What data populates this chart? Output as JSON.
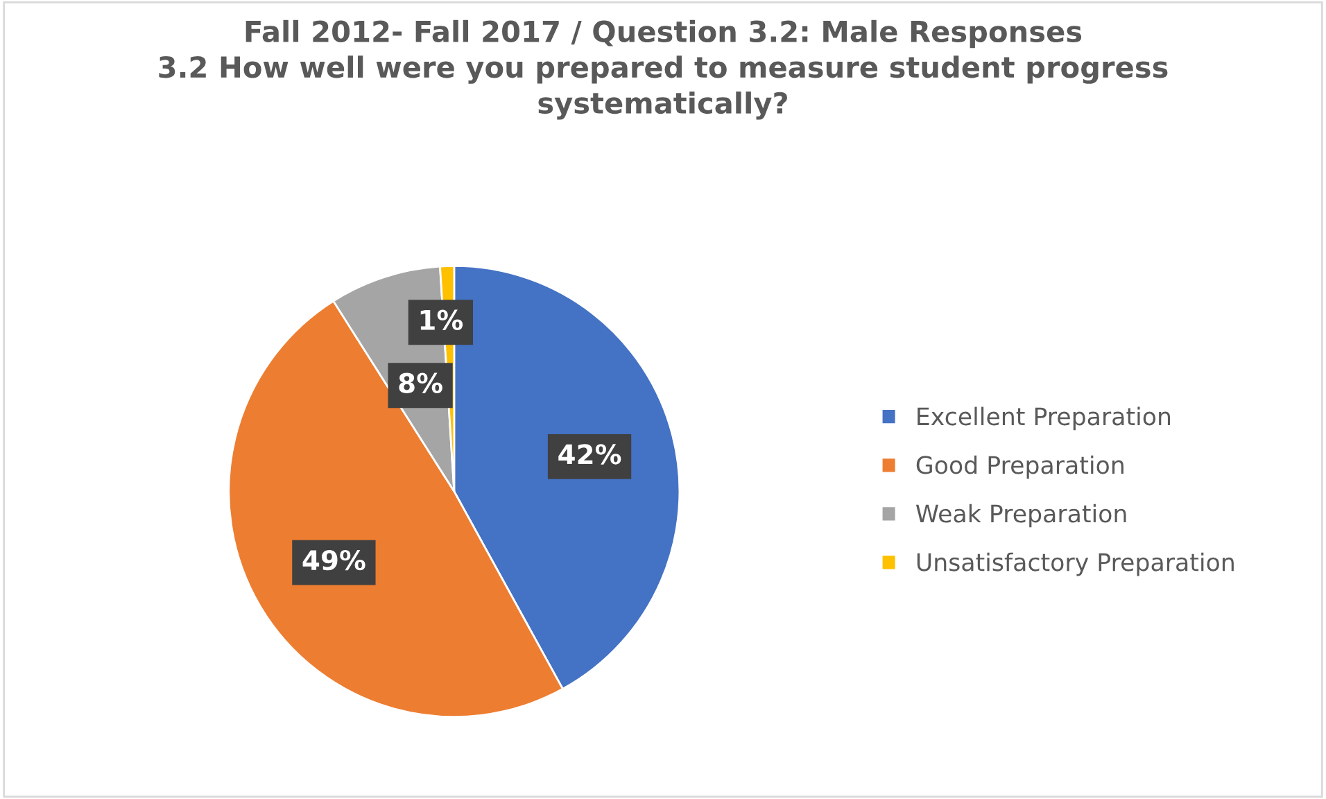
{
  "chart_data": {
    "type": "pie",
    "title": "Fall 2012- Fall 2017 / Question 3.2: Male Responses\n3.2 How well were you prepared to measure student progress\nsystematically?",
    "categories": [
      "Excellent Preparation",
      "Good Preparation",
      "Weak Preparation",
      "Unsatisfactory Preparation"
    ],
    "values": [
      42,
      49,
      8,
      1
    ],
    "colors": [
      "#4472c4",
      "#ed7d31",
      "#a5a5a5",
      "#ffc000"
    ],
    "value_labels": [
      "42%",
      "49%",
      "8%",
      "1%"
    ],
    "legend": "right"
  }
}
